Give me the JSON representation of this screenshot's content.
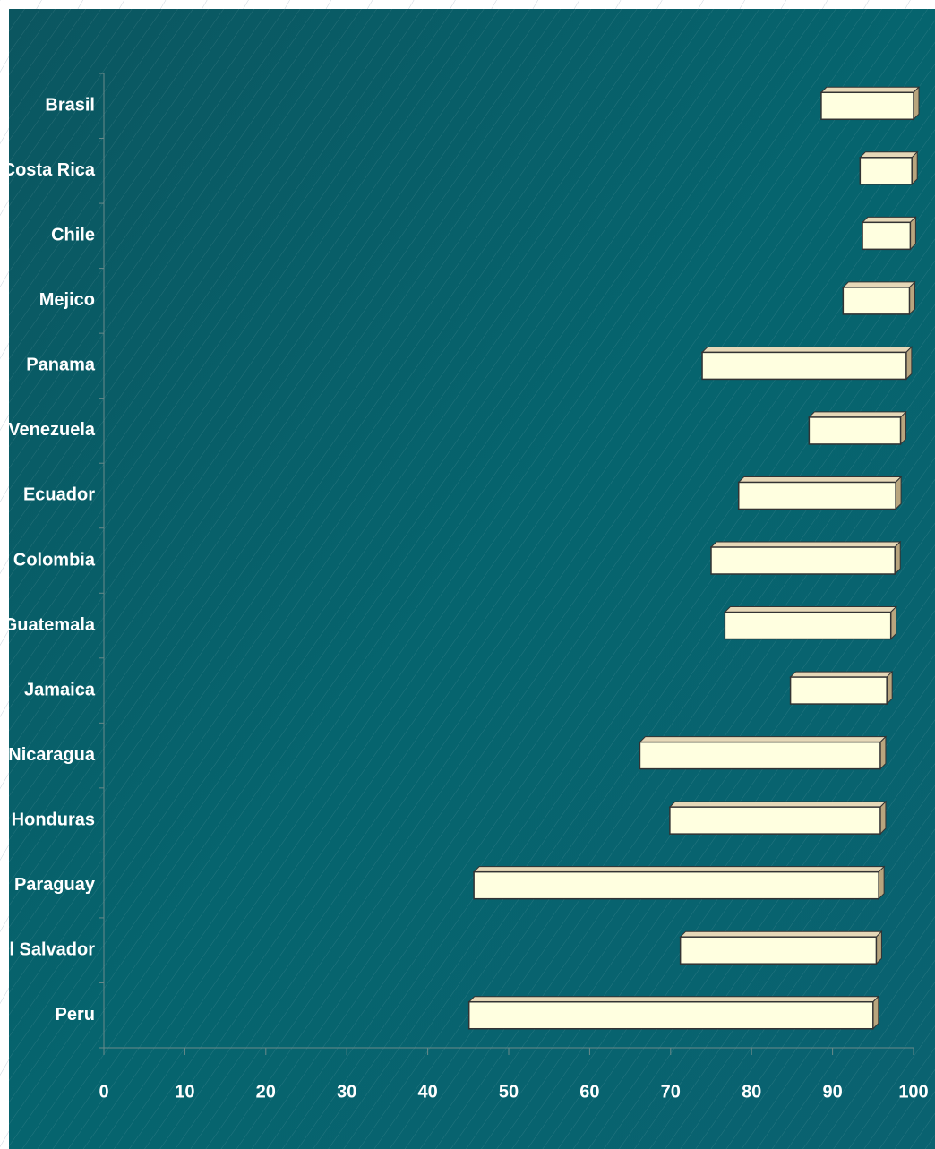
{
  "chart_data": {
    "type": "floating_bar",
    "categories": [
      "Brasil",
      "Costa Rica",
      "Chile",
      "Mejico",
      "Panama",
      "Venezuela",
      "Ecuador",
      "Colombia",
      "Guatemala",
      "Jamaica",
      "Nicaragua",
      "Honduras",
      "Paraguay",
      "El Salvador",
      "Peru"
    ],
    "low": [
      88.6,
      93.4,
      93.7,
      91.3,
      73.9,
      87.1,
      78.4,
      75.0,
      76.7,
      84.8,
      66.2,
      69.9,
      45.7,
      71.2,
      45.1
    ],
    "high": [
      100,
      99.8,
      99.6,
      99.5,
      99.1,
      98.4,
      97.8,
      97.7,
      97.2,
      96.7,
      95.9,
      95.9,
      95.7,
      95.4,
      95.0
    ],
    "color": "#ffffe0",
    "xlim": [
      0,
      100
    ],
    "xticks": [
      0,
      10,
      20,
      30,
      40,
      50,
      60,
      70,
      80,
      90,
      100
    ]
  }
}
